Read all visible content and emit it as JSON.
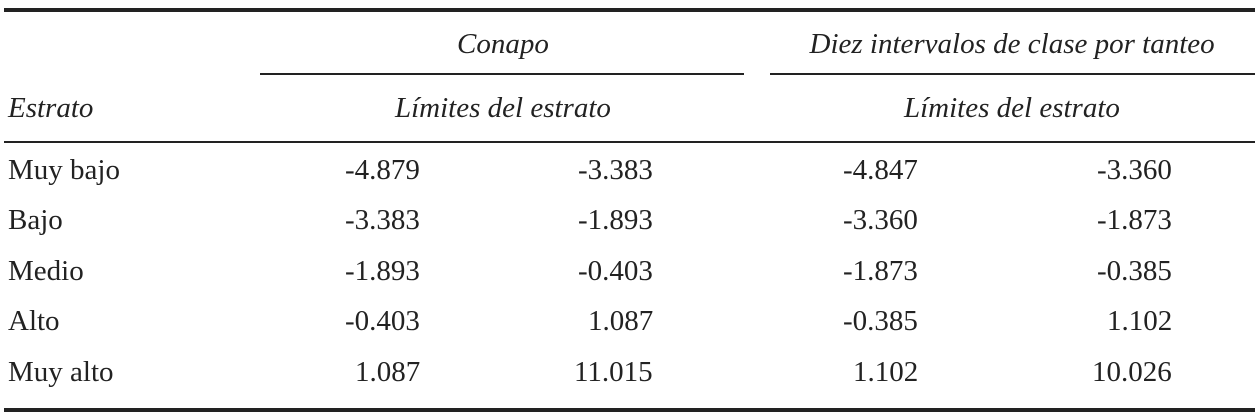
{
  "header": {
    "groups": [
      "Conapo",
      "Diez intervalos de clase por tanteo"
    ],
    "stub": "Estrato",
    "subheads": [
      "Límites del estrato",
      "Límites del estrato"
    ]
  },
  "table": {
    "rows": [
      [
        "Muy bajo",
        "-4.879",
        "-3.383",
        "-4.847",
        "-3.360"
      ],
      [
        "Bajo",
        "-3.383",
        "-1.893",
        "-3.360",
        "-1.873"
      ],
      [
        "Medio",
        "-1.893",
        "-0.403",
        "-1.873",
        "-0.385"
      ],
      [
        "Alto",
        "-0.403",
        "1.087",
        "-0.385",
        "1.102"
      ],
      [
        "Muy alto",
        "1.087",
        "11.015",
        "1.102",
        "10.026"
      ]
    ]
  }
}
